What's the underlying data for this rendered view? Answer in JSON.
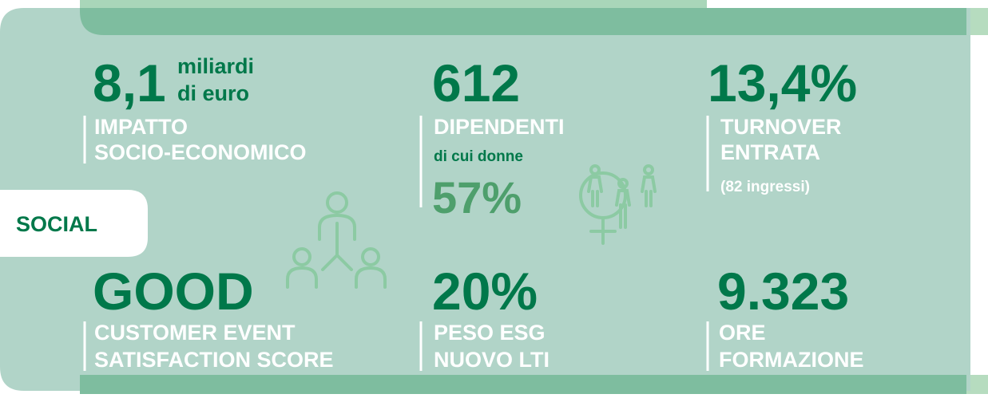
{
  "section": "SOCIAL",
  "items": [
    {
      "value": "8,1",
      "unit": [
        "miliardi",
        "di euro"
      ],
      "label": [
        "IMPATTO",
        "SOCIO-ECONOMICO"
      ]
    },
    {
      "value": "612",
      "label": [
        "DIPENDENTI"
      ],
      "sublabel": "di cui donne",
      "subvalue": "57%"
    },
    {
      "value": "13,4%",
      "label": [
        "TURNOVER",
        "ENTRATA"
      ],
      "note": "(82 ingressi)"
    },
    {
      "value": "GOOD",
      "label": [
        "CUSTOMER EVENT",
        "SATISFACTION SCORE"
      ]
    },
    {
      "value": "20%",
      "label": [
        "PESO ESG",
        "NUOVO LTI"
      ]
    },
    {
      "value": "9.323",
      "label": [
        "ORE",
        "FORMAZIONE"
      ]
    }
  ]
}
